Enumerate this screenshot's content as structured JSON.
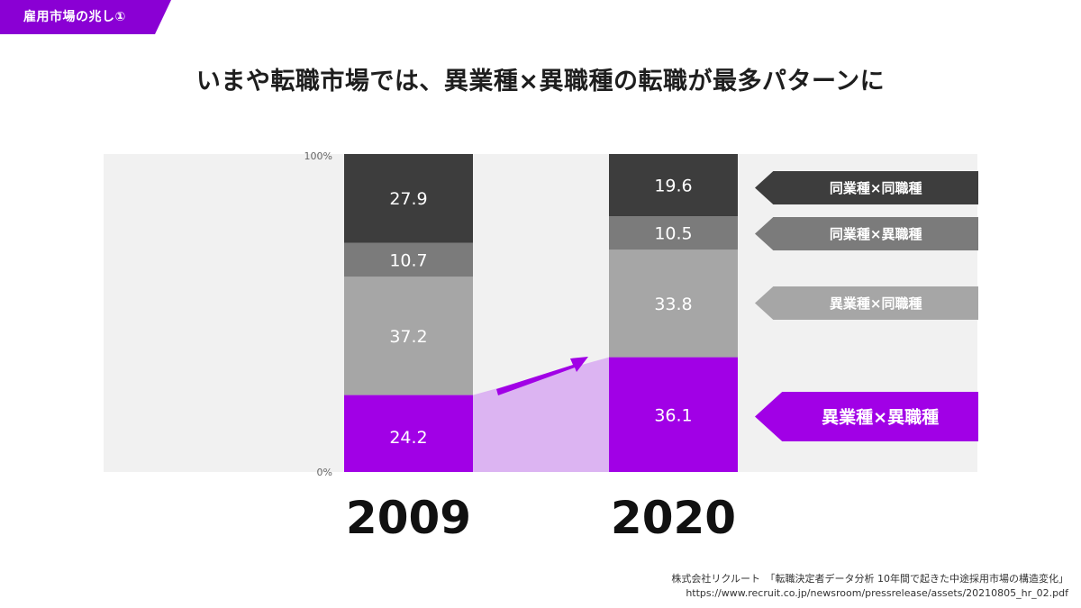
{
  "section_tag": {
    "label": "雇用市場の兆し①",
    "color": "#8a00d4"
  },
  "headline": "いまや転職市場では、異業種×異職種の転職が最多パターンに",
  "chart_data": {
    "type": "bar",
    "stacked": true,
    "categories": [
      "2009",
      "2020"
    ],
    "ylim": [
      0,
      100
    ],
    "ytick_labels": [
      "0%",
      "100%"
    ],
    "series": [
      {
        "name": "異業種×異職種",
        "values": [
          24.2,
          36.1
        ],
        "color": "#a100e6",
        "text_color": "#ffffff"
      },
      {
        "name": "異業種×同職種",
        "values": [
          37.2,
          33.8
        ],
        "color": "#a6a6a6",
        "text_color": "#ffffff"
      },
      {
        "name": "同業種×異職種",
        "values": [
          10.7,
          10.5
        ],
        "color": "#7b7b7b",
        "text_color": "#ffffff"
      },
      {
        "name": "同業種×同職種",
        "values": [
          27.9,
          19.6
        ],
        "color": "#3d3d3d",
        "text_color": "#ffffff"
      }
    ],
    "legend_placement": "right",
    "highlight_fill": "#dcb4f2",
    "background_fill": "#f1f1f1"
  },
  "source": {
    "line1": "株式会社リクルート　「転職決定者データ分析 10年間で起きた中途採用市場の構造変化」",
    "line2": "https://www.recruit.co.jp/newsroom/pressrelease/assets/20210805_hr_02.pdf"
  }
}
